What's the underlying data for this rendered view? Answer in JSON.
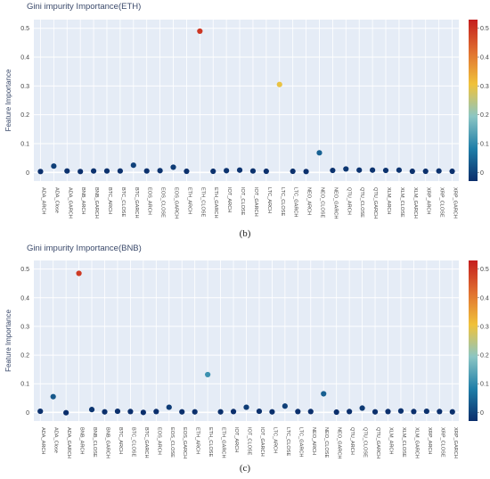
{
  "chart_data": [
    {
      "type": "scatter",
      "title": "Gini impurity Importance(ETH)",
      "ylabel": "Feature Importance",
      "caption": "(b)",
      "ylim": [
        -0.03,
        0.53
      ],
      "yticks": [
        0,
        0.1,
        0.2,
        0.3,
        0.4,
        0.5
      ],
      "colorbar_ticks": [
        0,
        0.1,
        0.2,
        0.3,
        0.4,
        0.5
      ],
      "colorscale": [
        "#0b2e6b",
        "#1f7ea8",
        "#8bc6c4",
        "#f0c23a",
        "#e07030",
        "#c41e1e"
      ],
      "grid": true,
      "categories": [
        "ADA_ARCH",
        "ADA_Close",
        "ADA_GARCH",
        "BNB_ARCH",
        "BNB_GARCH",
        "BTC_ARCH",
        "BTC_CLOSE",
        "BTC_GARCH",
        "EOS_ARCH",
        "EOS_CLOSE",
        "EOS_GARCH",
        "ETH_ARCH",
        "ETH_CLOSE",
        "ETH_GARCH",
        "IOT_ARCH",
        "IOT_CLOSE",
        "IOT_GARCH",
        "LTC_ARCH",
        "LTC_CLOSE",
        "LTC_GARCH",
        "NEO_ARCH",
        "NEO_CLOSE",
        "NEO_GARCH",
        "QTU_ARCH",
        "QTU_CLOSE",
        "QTU_GARCH",
        "XLM_ARCH",
        "XLM_CLOSE",
        "XLM_GARCH",
        "XRP_ARCH",
        "XRP_CLOSE",
        "XRP_GARCH"
      ],
      "values": [
        0.003,
        0.022,
        0.005,
        0.003,
        0.005,
        0.005,
        0.005,
        0.025,
        0.005,
        0.006,
        0.018,
        0.004,
        0.49,
        0.004,
        0.006,
        0.008,
        0.005,
        0.004,
        0.305,
        0.004,
        0.003,
        0.068,
        0.007,
        0.012,
        0.008,
        0.008,
        0.007,
        0.008,
        0.004,
        0.004,
        0.005,
        0.004
      ]
    },
    {
      "type": "scatter",
      "title": "Gini impurity Importance(BNB)",
      "ylabel": "Feature Importance",
      "caption": "(c)",
      "ylim": [
        -0.03,
        0.53
      ],
      "yticks": [
        0,
        0.1,
        0.2,
        0.3,
        0.4,
        0.5
      ],
      "colorbar_ticks": [
        0,
        0.1,
        0.2,
        0.3,
        0.4,
        0.5
      ],
      "colorscale": [
        "#0b2e6b",
        "#1f7ea8",
        "#8bc6c4",
        "#f0c23a",
        "#e07030",
        "#c41e1e"
      ],
      "grid": true,
      "categories": [
        "ADA_ARCH",
        "ADA_Close",
        "ADA_GARCH",
        "BNB_ARCH",
        "BNB_CLOSE",
        "BNB_GARCH",
        "BTC_ARCH",
        "BTC_CLOSE",
        "BTC_GARCH",
        "EOS_ARCH",
        "EOS_CLOSE",
        "EOS_GARCH",
        "ETH_ARCH",
        "ETH_CLOSE",
        "ETH_GARCH",
        "IOT_ARCH",
        "IOT_CLOSE",
        "IOT_GARCH",
        "LTC_ARCH",
        "LTC_CLOSE",
        "LTC_GARCH",
        "NEO_ARCH",
        "NEO_CLOSE",
        "NEO_GARCH",
        "QTU_ARCH",
        "QTU_CLOSE",
        "QTU_GARCH",
        "XLM_ARCH",
        "XLM_CLOSE",
        "XLM_GARCH",
        "XRP_ARCH",
        "XRP_CLOSE",
        "XRP_GARCH"
      ],
      "values": [
        0.004,
        0.055,
        -0.001,
        0.485,
        0.01,
        0.002,
        0.004,
        0.003,
        0.0,
        0.003,
        0.018,
        0.002,
        0.002,
        0.132,
        0.002,
        0.003,
        0.018,
        0.004,
        0.002,
        0.022,
        0.003,
        0.003,
        0.065,
        0.001,
        0.003,
        0.015,
        0.002,
        0.003,
        0.005,
        0.003,
        0.004,
        0.003,
        0.002
      ]
    }
  ]
}
